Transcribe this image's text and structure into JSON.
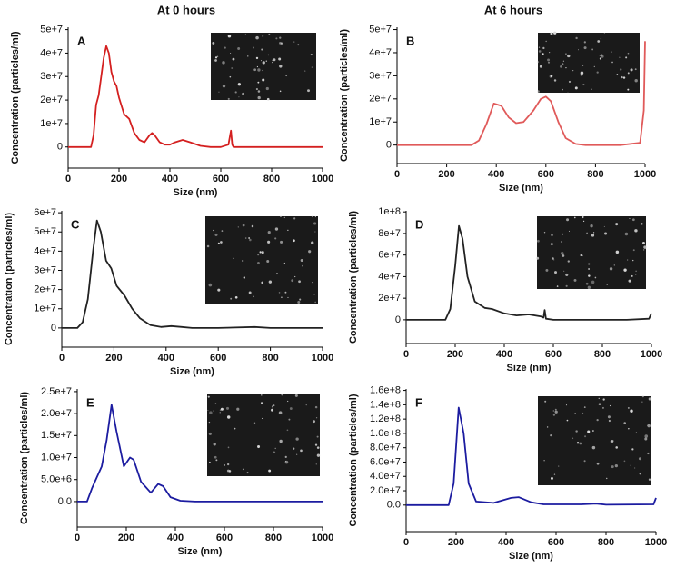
{
  "headers": [
    "At 0 hours",
    "At 6 hours"
  ],
  "chart_data": [
    {
      "type": "line",
      "label": "A",
      "xlabel": "Size (nm)",
      "ylabel": "Concentration (particles/ml)",
      "color": "#d42020",
      "x": [
        0,
        90,
        100,
        110,
        120,
        130,
        140,
        150,
        160,
        170,
        180,
        190,
        200,
        220,
        240,
        260,
        280,
        300,
        320,
        330,
        340,
        360,
        380,
        400,
        420,
        450,
        480,
        520,
        560,
        600,
        630,
        640,
        645,
        650,
        700,
        800,
        900,
        1000
      ],
      "values": [
        0,
        0,
        5000000.0,
        18000000.0,
        22000000.0,
        30000000.0,
        38000000.0,
        43000000.0,
        40000000.0,
        32000000.0,
        28000000.0,
        26000000.0,
        21000000.0,
        14000000.0,
        12000000.0,
        6000000.0,
        3000000.0,
        2000000.0,
        5000000.0,
        6000000.0,
        5000000.0,
        2000000.0,
        1000000.0,
        1000000.0,
        2000000.0,
        3000000.0,
        2000000.0,
        500000.0,
        0,
        0,
        1000000.0,
        7000000.0,
        1000000.0,
        0,
        0,
        0,
        0,
        0
      ],
      "xlim": [
        0,
        1000
      ],
      "xticks": [
        0,
        200,
        400,
        600,
        800,
        1000
      ],
      "ylim": [
        -9000000,
        51000000
      ],
      "yticks": [
        0,
        {
          "value": 10000000,
          "label": "1e+7"
        },
        {
          "value": 20000000,
          "label": "2e+7"
        },
        {
          "value": 30000000,
          "label": "3e+7"
        },
        {
          "value": 40000000,
          "label": "4e+7"
        },
        {
          "value": 50000000,
          "label": "5e+7"
        }
      ]
    },
    {
      "type": "line",
      "label": "B",
      "xlabel": "Size (nm)",
      "ylabel": "Concentration (particles/ml)",
      "color": "#e05a5a",
      "x": [
        0,
        300,
        330,
        360,
        390,
        420,
        450,
        480,
        510,
        550,
        580,
        600,
        620,
        650,
        680,
        720,
        760,
        900,
        980,
        995,
        1000
      ],
      "values": [
        0,
        0,
        2000000.0,
        9000000.0,
        18000000.0,
        17000000.0,
        12000000.0,
        9500000.0,
        10000000.0,
        15000000.0,
        20000000.0,
        21000000.0,
        19000000.0,
        10000000.0,
        3000000.0,
        500000.0,
        0,
        0,
        1000000.0,
        15000000.0,
        45000000.0
      ],
      "xlim": [
        0,
        1000
      ],
      "xticks": [
        0,
        200,
        400,
        600,
        800,
        1000
      ],
      "ylim": [
        -8000000,
        51000000
      ],
      "yticks": [
        0,
        {
          "value": 10000000,
          "label": "1e+7"
        },
        {
          "value": 20000000,
          "label": "2e+7"
        },
        {
          "value": 30000000,
          "label": "3e+7"
        },
        {
          "value": 40000000,
          "label": "4e+7"
        },
        {
          "value": 50000000,
          "label": "5e+7"
        }
      ]
    },
    {
      "type": "line",
      "label": "C",
      "xlabel": "Size (nm)",
      "ylabel": "Concentration (particles/ml)",
      "color": "#222222",
      "x": [
        0,
        60,
        80,
        100,
        120,
        135,
        150,
        170,
        190,
        210,
        240,
        270,
        300,
        340,
        380,
        420,
        460,
        500,
        600,
        740,
        800,
        1000
      ],
      "values": [
        0,
        0,
        3000000.0,
        15000000.0,
        40000000.0,
        56000000.0,
        50000000.0,
        35000000.0,
        31000000.0,
        22000000.0,
        17000000.0,
        10000000.0,
        5000000.0,
        1500000.0,
        500000.0,
        1000000.0,
        500000.0,
        0,
        0,
        500000.0,
        0,
        0
      ],
      "xlim": [
        0,
        1000
      ],
      "xticks": [
        0,
        200,
        400,
        600,
        800,
        1000
      ],
      "ylim": [
        -10000000,
        61000000
      ],
      "yticks": [
        0,
        {
          "value": 10000000,
          "label": "1e+7"
        },
        {
          "value": 20000000,
          "label": "2e+7"
        },
        {
          "value": 30000000,
          "label": "3e+7"
        },
        {
          "value": 40000000,
          "label": "4e+7"
        },
        {
          "value": 50000000,
          "label": "5e+7"
        },
        {
          "value": 60000000,
          "label": "6e+7"
        }
      ]
    },
    {
      "type": "line",
      "label": "D",
      "xlabel": "Size (nm)",
      "ylabel": "Concentration (particles/ml)",
      "color": "#222222",
      "x": [
        0,
        160,
        180,
        200,
        215,
        230,
        250,
        280,
        320,
        350,
        400,
        450,
        500,
        550,
        560,
        565,
        570,
        600,
        900,
        990,
        1000
      ],
      "values": [
        0,
        0,
        10000000.0,
        50000000.0,
        87000000.0,
        75000000.0,
        40000000.0,
        17000000.0,
        11000000.0,
        10000000.0,
        6000000.0,
        4000000.0,
        5000000.0,
        3000000.0,
        2000000.0,
        9000000.0,
        1000000.0,
        0,
        0,
        1000000.0,
        6000000.0
      ],
      "xlim": [
        0,
        1000
      ],
      "xticks": [
        0,
        200,
        400,
        600,
        800,
        1000
      ],
      "ylim": [
        -22000000,
        101000000
      ],
      "yticks": [
        0,
        {
          "value": 20000000,
          "label": "2e+7"
        },
        {
          "value": 40000000,
          "label": "4e+7"
        },
        {
          "value": 60000000,
          "label": "6e+7"
        },
        {
          "value": 80000000,
          "label": "8e+7"
        },
        {
          "value": 100000000,
          "label": "1e+8"
        }
      ]
    },
    {
      "type": "line",
      "label": "E",
      "xlabel": "Size (nm)",
      "ylabel": "Concentration (particles/ml)",
      "color": "#1c1ca0",
      "x": [
        0,
        40,
        60,
        80,
        100,
        120,
        140,
        160,
        190,
        215,
        230,
        260,
        300,
        330,
        350,
        380,
        420,
        480,
        1000
      ],
      "values": [
        0,
        0,
        3000000.0,
        5500000.0,
        8000000.0,
        14000000.0,
        22000000.0,
        16000000.0,
        8000000.0,
        10000000.0,
        9500000.0,
        4500000.0,
        2000000.0,
        4000000.0,
        3500000.0,
        1000000.0,
        200000.0,
        0,
        0
      ],
      "xlim": [
        0,
        1000
      ],
      "xticks": [
        0,
        200,
        400,
        600,
        800,
        1000
      ],
      "ylim": [
        -5800000,
        25600000
      ],
      "yticks": [
        {
          "value": 0,
          "label": "0.0"
        },
        {
          "value": 5000000,
          "label": "5.0e+6"
        },
        {
          "value": 10000000,
          "label": "1.0e+7"
        },
        {
          "value": 15000000,
          "label": "1.5e+7"
        },
        {
          "value": 20000000,
          "label": "2.0e+7"
        },
        {
          "value": 25000000,
          "label": "2.5e+7"
        }
      ]
    },
    {
      "type": "line",
      "label": "F",
      "xlabel": "Size (nm)",
      "ylabel": "Concentration (particles/ml)",
      "color": "#1c1ca0",
      "x": [
        0,
        170,
        190,
        210,
        230,
        250,
        280,
        350,
        420,
        450,
        500,
        550,
        700,
        760,
        800,
        990,
        1000
      ],
      "values": [
        0,
        0,
        30000000.0,
        136000000.0,
        100000000.0,
        30000000.0,
        5000000.0,
        3000000.0,
        10000000.0,
        11000000.0,
        4000000.0,
        1000000.0,
        1000000.0,
        2000000.0,
        500000.0,
        1000000.0,
        10000000.0
      ],
      "xlim": [
        0,
        1000
      ],
      "xticks": [
        0,
        200,
        400,
        600,
        800,
        1000
      ],
      "ylim": [
        -37000000,
        162000000
      ],
      "yticks": [
        {
          "value": 0,
          "label": "0.0"
        },
        {
          "value": 20000000,
          "label": "2.0e+7"
        },
        {
          "value": 40000000,
          "label": "4.0e+7"
        },
        {
          "value": 60000000,
          "label": "6.0e+7"
        },
        {
          "value": 80000000,
          "label": "8.0e+7"
        },
        {
          "value": 100000000,
          "label": "1.0e+8"
        },
        {
          "value": 120000000,
          "label": "1.2e+8"
        },
        {
          "value": 140000000,
          "label": "1.4e+8"
        },
        {
          "value": 160000000,
          "label": "1.6e+8"
        }
      ]
    }
  ]
}
